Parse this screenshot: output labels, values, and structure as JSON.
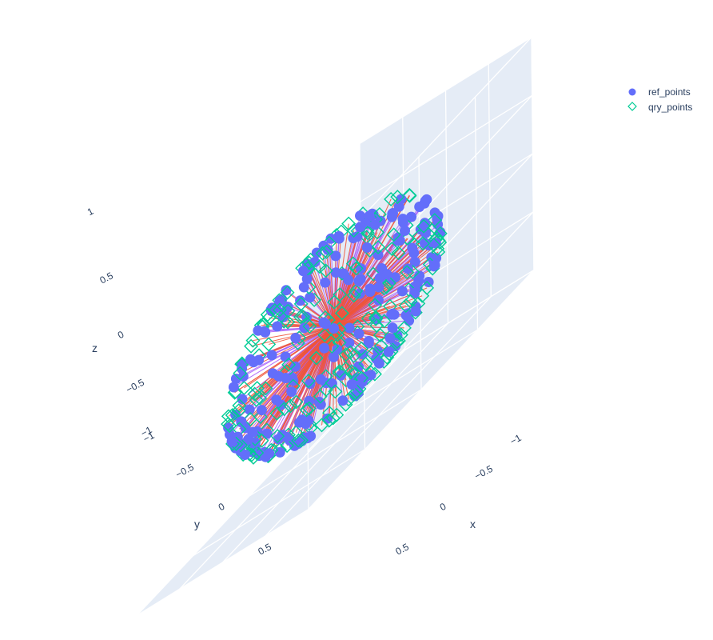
{
  "chart_data": {
    "type": "scatter3d",
    "title": "",
    "legend": {
      "placement": "top-right",
      "entries": [
        {
          "name": "ref_points",
          "marker": "circle",
          "color": "#636efa"
        },
        {
          "name": "qry_points",
          "marker": "diamond-open",
          "color": "#00cc96"
        }
      ]
    },
    "axes": {
      "x": {
        "title": "x",
        "range": [
          -1,
          1
        ],
        "ticks": [
          "−1",
          "−0.5",
          "0",
          "0.5"
        ]
      },
      "y": {
        "title": "y",
        "range": [
          -1,
          1
        ],
        "ticks": [
          "−1",
          "−0.5",
          "0",
          "0.5"
        ]
      },
      "z": {
        "title": "z",
        "range": [
          -1,
          1
        ],
        "ticks": [
          "−1",
          "−0.5",
          "0",
          "0.5",
          "1"
        ]
      }
    },
    "line_colors": {
      "ref": "#ab63fa",
      "qry": "#ef553b"
    },
    "colors": {
      "scene_bg": "#e5ecf6",
      "grid": "#ffffff"
    },
    "n_points": 220,
    "sphere_radius": 0.75,
    "note": ""
  }
}
